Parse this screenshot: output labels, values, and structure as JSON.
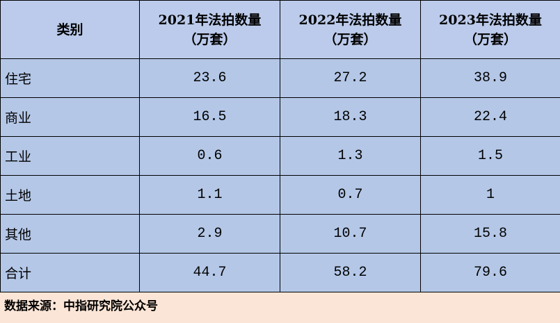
{
  "table": {
    "header": [
      "类别",
      {
        "title": "2021年法拍数量",
        "unit": "（万套）"
      },
      {
        "title": "2022年法拍数量",
        "unit": "（万套）"
      },
      {
        "title": "2023年法拍数量",
        "unit": "（万套）"
      }
    ],
    "rows": [
      [
        "住宅",
        "23.6",
        "27.2",
        "38.9"
      ],
      [
        "商业",
        "16.5",
        "18.3",
        "22.4"
      ],
      [
        "工业",
        "0.6",
        "1.3",
        "1.5"
      ],
      [
        "土地",
        "1.1",
        "0.7",
        "1"
      ],
      [
        "其他",
        "2.9",
        "10.7",
        "15.8"
      ],
      [
        "合计",
        "44.7",
        "58.2",
        "79.6"
      ]
    ]
  },
  "footer": {
    "source": "数据来源：中指研究院公众号"
  }
}
